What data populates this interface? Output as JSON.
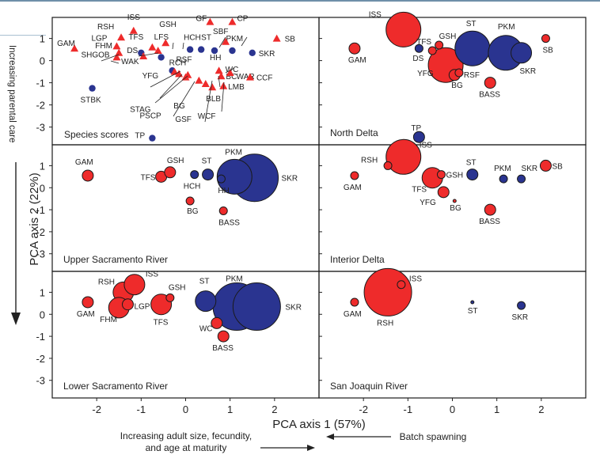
{
  "figure": {
    "xlabel": "PCA axis 1 (57%)",
    "ylabel": "PCA axis 2 (22%)",
    "top_left_note": "Increasing parental care",
    "bottom_left_note_line1": "Increasing adult size, fecundity,",
    "bottom_left_note_line2": "and age at maturity",
    "bottom_right_note": "Batch spawning",
    "x_ticks": [
      -2,
      -1,
      0,
      1,
      2
    ],
    "y_ticks": [
      1,
      0,
      -1,
      -2,
      -3
    ]
  },
  "colors": {
    "red": "#ee2b2b",
    "blue": "#2a3490",
    "outline": "#1a1a1a"
  },
  "chart_data": [
    {
      "type": "scatter",
      "title": "Species scores",
      "xlim": [
        -3.0,
        3.0
      ],
      "ylim": [
        -3.8,
        1.95
      ],
      "points": [
        {
          "label": "GAM",
          "x": -2.5,
          "y": 0.55,
          "marker": "triangle"
        },
        {
          "label": "ISS",
          "x": -1.17,
          "y": 1.35,
          "marker": "triangle"
        },
        {
          "label": "RSH",
          "x": -1.45,
          "y": 1.05,
          "marker": "triangle"
        },
        {
          "label": "LGP",
          "x": -1.55,
          "y": 0.65,
          "marker": "triangle"
        },
        {
          "label": "FHM",
          "x": -1.5,
          "y": 0.35,
          "marker": "triangle"
        },
        {
          "label": "SHGOB",
          "x": -1.55,
          "y": 0.15,
          "marker": "triangle"
        },
        {
          "label": "TFS",
          "x": -0.75,
          "y": 0.6,
          "marker": "triangle"
        },
        {
          "label": "GSH",
          "x": -0.45,
          "y": 0.8,
          "marker": "triangle"
        },
        {
          "label": "LFS",
          "x": -0.62,
          "y": 0.45,
          "marker": "triangle"
        },
        {
          "label": "DS",
          "x": -1.0,
          "y": 0.35,
          "marker": "circle"
        },
        {
          "label": "WAK",
          "x": -0.95,
          "y": 0.2,
          "marker": "triangle"
        },
        {
          "label": "RCH",
          "x": -0.55,
          "y": 0.15,
          "marker": "circle"
        },
        {
          "label": "HCH",
          "x": 0.1,
          "y": 0.5,
          "marker": "circle"
        },
        {
          "label": "ST",
          "x": 0.35,
          "y": 0.5,
          "marker": "circle"
        },
        {
          "label": "HH",
          "x": 0.65,
          "y": 0.45,
          "marker": "circle"
        },
        {
          "label": "PKM",
          "x": 1.05,
          "y": 0.45,
          "marker": "circle"
        },
        {
          "label": "SKR",
          "x": 1.5,
          "y": 0.35,
          "marker": "circle"
        },
        {
          "label": "GF",
          "x": 0.55,
          "y": 1.75,
          "marker": "triangle"
        },
        {
          "label": "CP",
          "x": 1.05,
          "y": 1.75,
          "marker": "triangle"
        },
        {
          "label": "SBF",
          "x": 0.9,
          "y": 0.85,
          "marker": "triangle"
        },
        {
          "label": "SB",
          "x": 2.05,
          "y": 1.0,
          "marker": "triangle"
        },
        {
          "label": "YFG",
          "x": -0.3,
          "y": -0.45,
          "marker": "circle"
        },
        {
          "label": "RSF",
          "x": -0.25,
          "y": -0.5,
          "marker": "triangle"
        },
        {
          "label": "STAG",
          "x": -0.15,
          "y": -0.6,
          "marker": "triangle"
        },
        {
          "label": "BG",
          "x": 0.05,
          "y": -0.65,
          "marker": "triangle"
        },
        {
          "label": "PSCP",
          "x": 0.0,
          "y": -0.75,
          "marker": "triangle"
        },
        {
          "label": "GSF",
          "x": 0.3,
          "y": -0.9,
          "marker": "triangle"
        },
        {
          "label": "WCF",
          "x": 0.45,
          "y": -1.05,
          "marker": "triangle"
        },
        {
          "label": "BLB",
          "x": 0.6,
          "y": -1.2,
          "marker": "triangle"
        },
        {
          "label": "LMB",
          "x": 0.85,
          "y": -1.15,
          "marker": "triangle"
        },
        {
          "label": "BC",
          "x": 0.8,
          "y": -0.7,
          "marker": "triangle"
        },
        {
          "label": "WC",
          "x": 0.75,
          "y": -0.45,
          "marker": "triangle"
        },
        {
          "label": "WAR",
          "x": 1.0,
          "y": -0.55,
          "marker": "triangle"
        },
        {
          "label": "CCF",
          "x": 1.45,
          "y": -0.75,
          "marker": "triangle"
        },
        {
          "label": "STBK",
          "x": -2.1,
          "y": -1.25,
          "marker": "circle"
        },
        {
          "label": "TP",
          "x": -0.75,
          "y": -3.5,
          "marker": "circle"
        }
      ]
    },
    {
      "type": "scatter",
      "title": "North Delta",
      "xlim": [
        -3.0,
        3.0
      ],
      "ylim": [
        -3.8,
        1.95
      ],
      "points": [
        {
          "label": "GAM",
          "x": -2.2,
          "y": 0.55,
          "color": "red",
          "size": "small"
        },
        {
          "label": "ISS",
          "x": -1.1,
          "y": 1.4,
          "color": "red",
          "size": "large"
        },
        {
          "label": "DS",
          "x": -0.75,
          "y": 0.55,
          "color": "blue",
          "size": "tiny"
        },
        {
          "label": "TFS",
          "x": -0.45,
          "y": 0.45,
          "color": "red",
          "size": "tiny"
        },
        {
          "label": "GSH",
          "x": -0.3,
          "y": 0.7,
          "color": "red",
          "size": "tiny"
        },
        {
          "label": "YFG",
          "x": -0.15,
          "y": -0.2,
          "color": "red",
          "size": "large"
        },
        {
          "label": "RSF",
          "x": 0.15,
          "y": -0.55,
          "color": "red",
          "size": "tiny"
        },
        {
          "label": "BG",
          "x": 0.05,
          "y": -0.65,
          "color": "red",
          "size": "small"
        },
        {
          "label": "ST",
          "x": 0.45,
          "y": 0.55,
          "color": "blue",
          "size": "large"
        },
        {
          "label": "PKM",
          "x": 1.2,
          "y": 0.35,
          "color": "blue",
          "size": "large"
        },
        {
          "label": "SKR",
          "x": 1.55,
          "y": 0.35,
          "color": "blue",
          "size": "medium"
        },
        {
          "label": "SB",
          "x": 2.1,
          "y": 1.0,
          "color": "red",
          "size": "tiny"
        },
        {
          "label": "BASS",
          "x": 0.85,
          "y": -1.0,
          "color": "red",
          "size": "small"
        },
        {
          "label": "TP",
          "x": -0.75,
          "y": -3.45,
          "color": "blue",
          "size": "small"
        }
      ]
    },
    {
      "type": "scatter",
      "title": "Upper Sacramento River",
      "xlim": [
        -3.0,
        3.0
      ],
      "ylim": [
        -3.8,
        1.95
      ],
      "points": [
        {
          "label": "GAM",
          "x": -2.2,
          "y": 0.55,
          "color": "red",
          "size": "small"
        },
        {
          "label": "TFS",
          "x": -0.55,
          "y": 0.5,
          "color": "red",
          "size": "small"
        },
        {
          "label": "GSH",
          "x": -0.35,
          "y": 0.7,
          "color": "red",
          "size": "small"
        },
        {
          "label": "BG",
          "x": 0.1,
          "y": -0.6,
          "color": "red",
          "size": "tiny"
        },
        {
          "label": "HCH",
          "x": 0.2,
          "y": 0.6,
          "color": "blue",
          "size": "tiny"
        },
        {
          "label": "ST",
          "x": 0.5,
          "y": 0.6,
          "color": "blue",
          "size": "small"
        },
        {
          "label": "HH",
          "x": 0.8,
          "y": 0.4,
          "color": "blue",
          "size": "tiny"
        },
        {
          "label": "PKM",
          "x": 1.1,
          "y": 0.5,
          "color": "blue",
          "size": "large"
        },
        {
          "label": "SKR",
          "x": 1.55,
          "y": 0.45,
          "color": "blue",
          "size": "xlarge"
        },
        {
          "label": "BASS",
          "x": 0.85,
          "y": -1.05,
          "color": "red",
          "size": "tiny"
        }
      ]
    },
    {
      "type": "scatter",
      "title": "Interior Delta",
      "xlim": [
        -3.0,
        3.0
      ],
      "ylim": [
        -3.8,
        1.95
      ],
      "points": [
        {
          "label": "GAM",
          "x": -2.2,
          "y": 0.55,
          "color": "red",
          "size": "tiny"
        },
        {
          "label": "RSH",
          "x": -1.45,
          "y": 1.0,
          "color": "red",
          "size": "tiny"
        },
        {
          "label": "ISS",
          "x": -1.1,
          "y": 1.4,
          "color": "red",
          "size": "large"
        },
        {
          "label": "TFS",
          "x": -0.45,
          "y": 0.45,
          "color": "red",
          "size": "medium"
        },
        {
          "label": "GSH",
          "x": -0.25,
          "y": 0.6,
          "color": "red",
          "size": "tiny"
        },
        {
          "label": "YFG",
          "x": -0.2,
          "y": -0.2,
          "color": "red",
          "size": "small"
        },
        {
          "label": "BG",
          "x": 0.05,
          "y": -0.6,
          "color": "red",
          "size": "dot"
        },
        {
          "label": "ST",
          "x": 0.45,
          "y": 0.6,
          "color": "blue",
          "size": "small"
        },
        {
          "label": "PKM",
          "x": 1.15,
          "y": 0.4,
          "color": "blue",
          "size": "tiny"
        },
        {
          "label": "SKR",
          "x": 1.55,
          "y": 0.4,
          "color": "blue",
          "size": "tiny"
        },
        {
          "label": "SB",
          "x": 2.1,
          "y": 1.0,
          "color": "red",
          "size": "small"
        },
        {
          "label": "BASS",
          "x": 0.85,
          "y": -1.0,
          "color": "red",
          "size": "small"
        }
      ]
    },
    {
      "type": "scatter",
      "title": "Lower Sacramento River",
      "xlim": [
        -3.0,
        3.0
      ],
      "ylim": [
        -3.8,
        1.95
      ],
      "points": [
        {
          "label": "GAM",
          "x": -2.2,
          "y": 0.55,
          "color": "red",
          "size": "small"
        },
        {
          "label": "RSH",
          "x": -1.4,
          "y": 1.0,
          "color": "red",
          "size": "medium"
        },
        {
          "label": "ISS",
          "x": -1.15,
          "y": 1.35,
          "color": "red",
          "size": "medium"
        },
        {
          "label": "LGP",
          "x": -1.3,
          "y": 0.45,
          "color": "red",
          "size": "small"
        },
        {
          "label": "FHM",
          "x": -1.5,
          "y": 0.3,
          "color": "red",
          "size": "medium"
        },
        {
          "label": "TFS",
          "x": -0.55,
          "y": 0.45,
          "color": "red",
          "size": "medium"
        },
        {
          "label": "GSH",
          "x": -0.35,
          "y": 0.75,
          "color": "red",
          "size": "tiny"
        },
        {
          "label": "ST",
          "x": 0.45,
          "y": 0.6,
          "color": "blue",
          "size": "medium"
        },
        {
          "label": "PKM",
          "x": 1.15,
          "y": 0.35,
          "color": "blue",
          "size": "xlarge"
        },
        {
          "label": "SKR",
          "x": 1.6,
          "y": 0.35,
          "color": "blue",
          "size": "xlarge"
        },
        {
          "label": "WC",
          "x": 0.7,
          "y": -0.4,
          "color": "red",
          "size": "small"
        },
        {
          "label": "BASS",
          "x": 0.85,
          "y": -1.0,
          "color": "red",
          "size": "small"
        }
      ]
    },
    {
      "type": "scatter",
      "title": "San Joaquin River",
      "xlim": [
        -3.0,
        3.0
      ],
      "ylim": [
        -3.8,
        1.95
      ],
      "points": [
        {
          "label": "GAM",
          "x": -2.2,
          "y": 0.55,
          "color": "red",
          "size": "tiny"
        },
        {
          "label": "ISS",
          "x": -1.15,
          "y": 1.35,
          "color": "red",
          "size": "tiny"
        },
        {
          "label": "RSH",
          "x": -1.45,
          "y": 1.0,
          "color": "red",
          "size": "xlarge"
        },
        {
          "label": "ST",
          "x": 0.45,
          "y": 0.55,
          "color": "blue",
          "size": "dot"
        },
        {
          "label": "SKR",
          "x": 1.55,
          "y": 0.4,
          "color": "blue",
          "size": "tiny"
        }
      ]
    }
  ]
}
